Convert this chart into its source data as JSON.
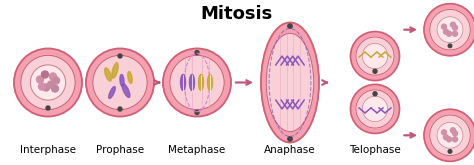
{
  "title": "Mitosis",
  "title_fontsize": 13,
  "title_fontweight": "bold",
  "background_color": "#ffffff",
  "stages": [
    "Interphase",
    "Prophase",
    "Metaphase",
    "Anaphase",
    "Telophase"
  ],
  "stage_label_fontsize": 7.5,
  "cell_outer_color": "#f4a0b0",
  "cell_inner_color": "#f9d0d8",
  "cell_inner2_color": "#fde8ec",
  "cell_edge_color": "#d06075",
  "chrom_purple": "#8855bb",
  "chrom_yellow": "#c8a832",
  "spindle_color": "#aa66cc",
  "arrow_color": "#c05878",
  "dot_color": "#444444",
  "figw": 4.74,
  "figh": 1.65,
  "dpi": 100
}
